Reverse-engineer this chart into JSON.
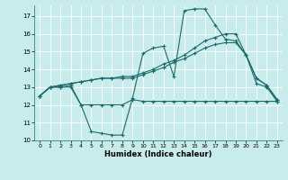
{
  "xlabel": "Humidex (Indice chaleur)",
  "bg_color": "#c8ebeb",
  "line_color": "#1a6b6b",
  "grid_color": "#ffffff",
  "xlim": [
    -0.5,
    23.5
  ],
  "ylim": [
    10,
    17.6
  ],
  "yticks": [
    10,
    11,
    12,
    13,
    14,
    15,
    16,
    17
  ],
  "xticks": [
    0,
    1,
    2,
    3,
    4,
    5,
    6,
    7,
    8,
    9,
    10,
    11,
    12,
    13,
    14,
    15,
    16,
    17,
    18,
    19,
    20,
    21,
    22,
    23
  ],
  "series": [
    {
      "x": [
        0,
        1,
        2,
        3,
        4,
        5,
        6,
        7,
        8,
        9,
        10,
        11,
        12,
        13,
        14,
        15,
        16,
        17,
        18,
        19,
        20,
        21,
        22,
        23
      ],
      "y": [
        12.5,
        13.0,
        13.0,
        13.1,
        12.0,
        10.5,
        10.4,
        10.3,
        10.3,
        12.4,
        14.9,
        15.2,
        15.3,
        13.6,
        17.3,
        17.4,
        17.4,
        16.5,
        15.7,
        15.6,
        14.8,
        13.2,
        13.0,
        12.2
      ]
    },
    {
      "x": [
        0,
        1,
        2,
        3,
        4,
        5,
        6,
        7,
        8,
        9,
        10,
        11,
        12,
        13,
        14,
        15,
        16,
        17,
        18,
        19,
        20,
        21,
        22,
        23
      ],
      "y": [
        12.5,
        13.0,
        13.0,
        13.0,
        12.0,
        12.0,
        12.0,
        12.0,
        12.0,
        12.3,
        12.2,
        12.2,
        12.2,
        12.2,
        12.2,
        12.2,
        12.2,
        12.2,
        12.2,
        12.2,
        12.2,
        12.2,
        12.2,
        12.2
      ]
    },
    {
      "x": [
        0,
        1,
        2,
        3,
        4,
        5,
        6,
        7,
        8,
        9,
        10,
        11,
        12,
        13,
        14,
        15,
        16,
        17,
        18,
        19,
        20,
        21,
        22,
        23
      ],
      "y": [
        12.5,
        13.0,
        13.1,
        13.2,
        13.3,
        13.4,
        13.5,
        13.5,
        13.6,
        13.6,
        13.8,
        14.0,
        14.3,
        14.5,
        14.8,
        15.2,
        15.6,
        15.8,
        16.0,
        16.0,
        14.8,
        13.5,
        13.1,
        12.3
      ]
    },
    {
      "x": [
        0,
        1,
        2,
        3,
        4,
        5,
        6,
        7,
        8,
        9,
        10,
        11,
        12,
        13,
        14,
        15,
        16,
        17,
        18,
        19,
        20,
        21,
        22,
        23
      ],
      "y": [
        12.5,
        13.0,
        13.1,
        13.2,
        13.3,
        13.4,
        13.5,
        13.5,
        13.5,
        13.5,
        13.7,
        13.9,
        14.1,
        14.4,
        14.6,
        14.9,
        15.2,
        15.4,
        15.5,
        15.5,
        14.8,
        13.5,
        13.1,
        12.3
      ]
    }
  ]
}
